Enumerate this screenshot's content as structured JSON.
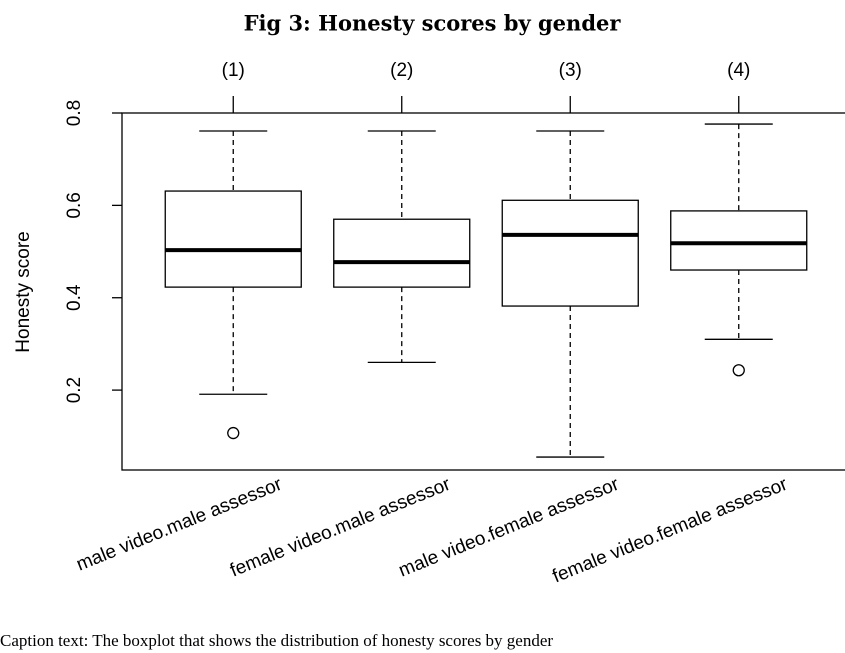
{
  "chart_data": {
    "type": "boxplot",
    "title": "Fig 3: Honesty scores by gender",
    "y_label": "Honesty score",
    "caption": "Caption text: The boxplot that shows the distribution of honesty scores by gender",
    "categories": [
      "male video.male assessor",
      "female video.male assessor",
      "male video.female assessor",
      "female video.female assessor"
    ],
    "top_labels": [
      "(1)",
      "(2)",
      "(3)",
      "(4)"
    ],
    "boxes": [
      {
        "low": 0.191,
        "q1": 0.423,
        "median": 0.503,
        "q3": 0.631,
        "high": 0.761,
        "outliers": [
          0.107
        ]
      },
      {
        "low": 0.26,
        "q1": 0.423,
        "median": 0.477,
        "q3": 0.57,
        "high": 0.761,
        "outliers": []
      },
      {
        "low": 0.055,
        "q1": 0.382,
        "median": 0.536,
        "q3": 0.611,
        "high": 0.761,
        "outliers": []
      },
      {
        "low": 0.31,
        "q1": 0.46,
        "median": 0.518,
        "q3": 0.588,
        "high": 0.776,
        "outliers": [
          0.243
        ]
      }
    ],
    "color": "#ffffff",
    "ylim": [
      0.027,
      0.8
    ],
    "yticks": [
      0.2,
      0.4,
      0.6,
      {
        "value": 0.8,
        "label": "0.8"
      }
    ]
  }
}
